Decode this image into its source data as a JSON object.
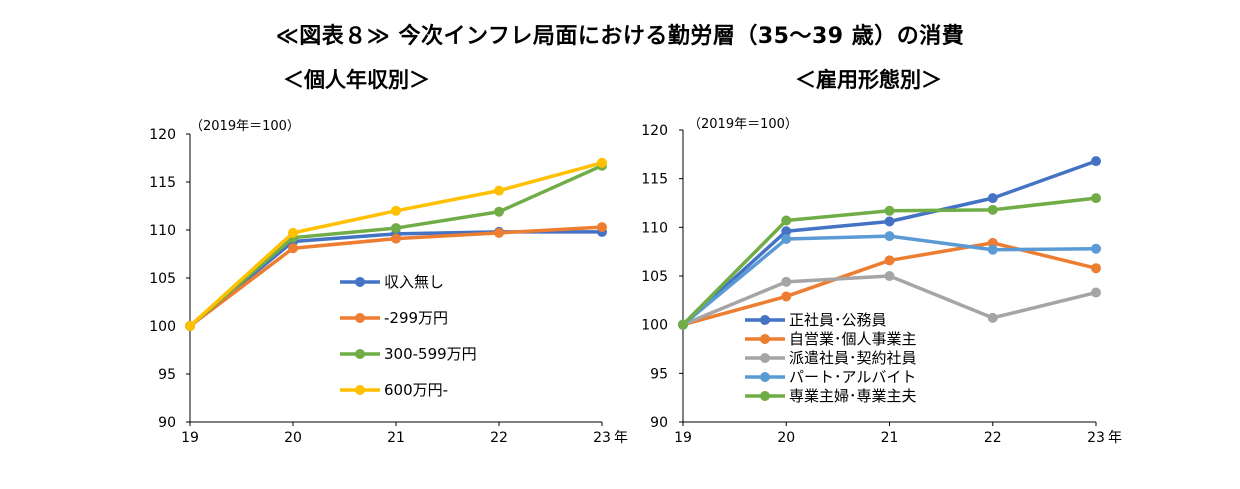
{
  "title": "≪図表８≫ 今次インフレ局面における勤労層（35～39 歳）の消費",
  "chart_data": [
    {
      "type": "line",
      "title": "＜個人年収別＞",
      "note": "（2019年＝100）",
      "categories": [
        "19",
        "20",
        "21",
        "22",
        "23"
      ],
      "x_unit": "年",
      "ylim": [
        90,
        120
      ],
      "yticks": [
        90,
        95,
        100,
        105,
        110,
        115,
        120
      ],
      "legend_position": "center",
      "series": [
        {
          "name": "収入無し",
          "color": "#4472c4",
          "values": [
            100,
            108.8,
            109.6,
            109.8,
            109.8
          ]
        },
        {
          "name": "-299万円",
          "color": "#ed7d31",
          "values": [
            100,
            108.1,
            109.1,
            109.7,
            110.3
          ]
        },
        {
          "name": "300-599万円",
          "color": "#70ad47",
          "values": [
            100,
            109.2,
            110.2,
            111.9,
            116.7
          ]
        },
        {
          "name": "600万円-",
          "color": "#ffc000",
          "values": [
            100,
            109.7,
            112.0,
            114.1,
            117.0
          ]
        }
      ]
    },
    {
      "type": "line",
      "title": "＜雇用形態別＞",
      "note": "（2019年＝100）",
      "categories": [
        "19",
        "20",
        "21",
        "22",
        "23"
      ],
      "x_unit": "年",
      "ylim": [
        90,
        120
      ],
      "yticks": [
        90,
        95,
        100,
        105,
        110,
        115,
        120
      ],
      "legend_position": "bottom-left",
      "series": [
        {
          "name": "正社員･公務員",
          "color": "#4472c4",
          "values": [
            100,
            109.6,
            110.6,
            113.0,
            116.8
          ]
        },
        {
          "name": "自営業･個人事業主",
          "color": "#ed7d31",
          "values": [
            100,
            102.9,
            106.6,
            108.4,
            105.8
          ]
        },
        {
          "name": "派遣社員･契約社員",
          "color": "#a5a5a5",
          "values": [
            100,
            104.4,
            105.0,
            100.7,
            103.3
          ]
        },
        {
          "name": "パート･アルバイト",
          "color": "#5b9bd5",
          "values": [
            100,
            108.8,
            109.1,
            107.7,
            107.8
          ]
        },
        {
          "name": "専業主婦･専業主夫",
          "color": "#70ad47",
          "values": [
            100,
            110.7,
            111.7,
            111.8,
            113.0
          ]
        }
      ]
    }
  ]
}
